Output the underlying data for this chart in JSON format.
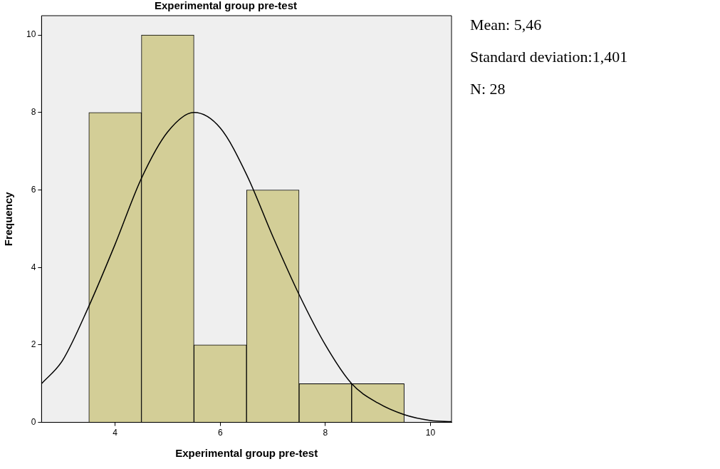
{
  "chart_data": {
    "type": "histogram",
    "title": "Experimental group pre-test",
    "xlabel": "Experimental group pre-test",
    "ylabel": "Frequency",
    "bins": [
      3.5,
      4.5,
      5.5,
      6.5,
      7.5,
      8.5,
      9.5
    ],
    "values": [
      8,
      10,
      2,
      6,
      1,
      1
    ],
    "color": "#d3ce97",
    "series": [
      {
        "type": "line",
        "color": "#000000",
        "x": [
          2.6,
          3.0,
          3.5,
          4.0,
          4.5,
          5.0,
          5.5,
          6.0,
          6.5,
          7.0,
          7.5,
          8.0,
          8.5,
          9.0,
          9.5,
          10.0,
          10.4
        ],
        "values": [
          1.0,
          1.6,
          3.0,
          4.6,
          6.3,
          7.5,
          8.0,
          7.6,
          6.4,
          4.8,
          3.3,
          2.0,
          1.0,
          0.5,
          0.2,
          0.05,
          0.02
        ]
      }
    ],
    "xlim": [
      2.6,
      10.4
    ],
    "xticks": [
      4,
      6,
      8,
      10
    ],
    "ylim": [
      0,
      10.5
    ],
    "yticks": [
      0,
      2,
      4,
      6,
      8,
      10
    ],
    "grid": false,
    "legend": false,
    "annotations": [
      "Mean: 5,46",
      "Standard deviation:1,401",
      "N: 28"
    ]
  }
}
